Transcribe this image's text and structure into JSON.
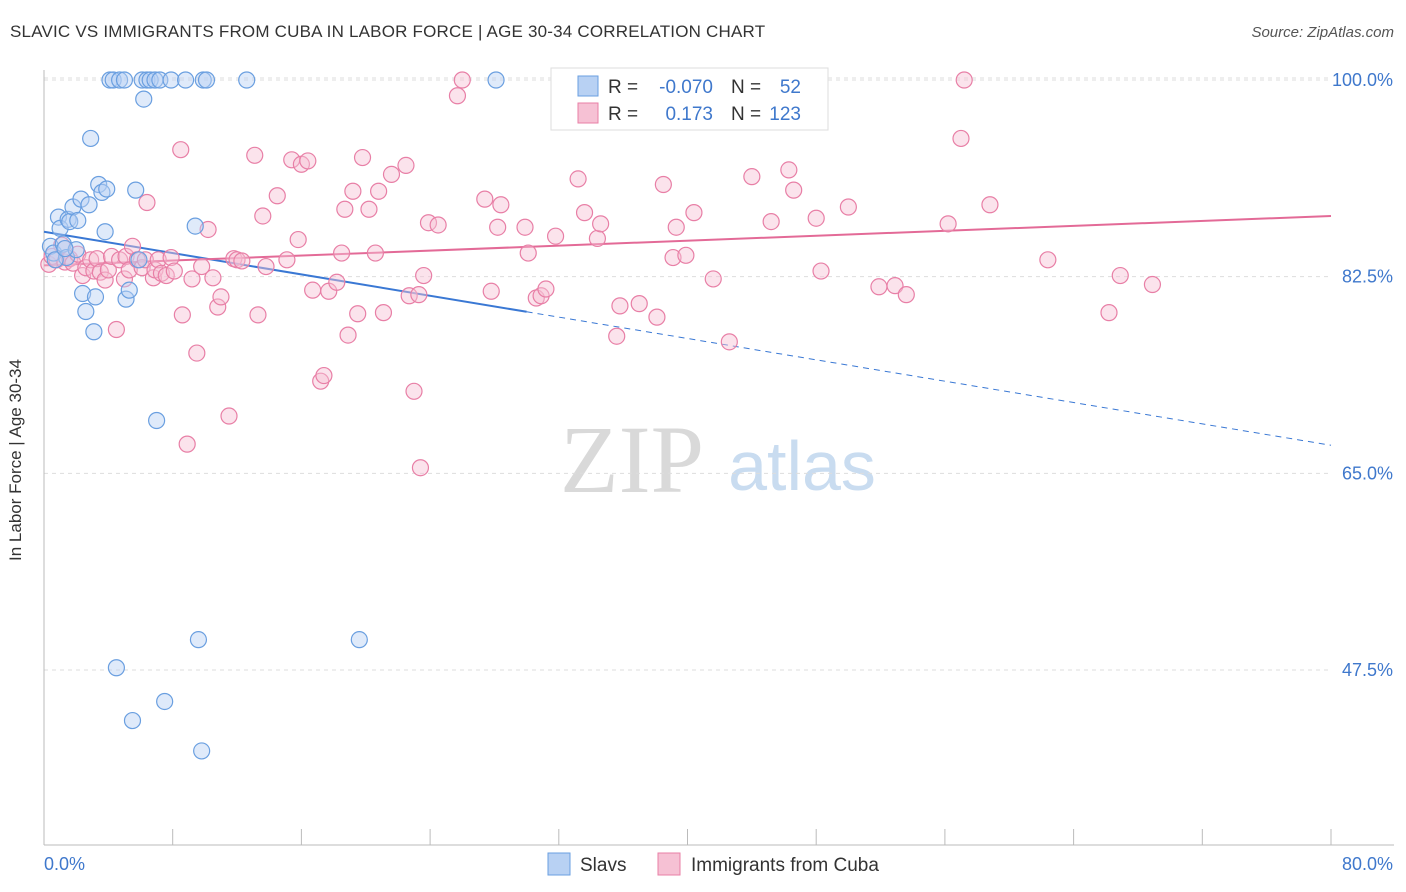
{
  "title": "SLAVIC VS IMMIGRANTS FROM CUBA IN LABOR FORCE | AGE 30-34 CORRELATION CHART",
  "source": "Source: ZipAtlas.com",
  "watermark": {
    "zip": "ZIP",
    "atlas": "atlas"
  },
  "colors": {
    "blue": "#6a9fe0",
    "blue_fill": "#b8d1f3",
    "blue_line": "#3a78d4",
    "pink": "#e87fa6",
    "pink_fill": "#f6c1d4",
    "pink_line": "#e36a97",
    "tick_text": "#3f78cc",
    "grid": "#dddddd"
  },
  "legend_box": {
    "rows": [
      {
        "r_label": "R =",
        "r_value": "-0.070",
        "n_label": "N =",
        "n_value": "52",
        "series": "blue"
      },
      {
        "r_label": "R =",
        "r_value": "0.173",
        "n_label": "N =",
        "n_value": "123",
        "series": "pink"
      }
    ]
  },
  "chart_data": {
    "type": "scatter",
    "title": "SLAVIC VS IMMIGRANTS FROM CUBA IN LABOR FORCE | AGE 30-34 CORRELATION CHART",
    "xlabel": "",
    "ylabel": "In Labor Force | Age 30-34",
    "xlim": [
      0,
      80
    ],
    "ylim": [
      32,
      102
    ],
    "x_tick_labels": [
      "0.0%",
      "80.0%"
    ],
    "y_ticks": [
      100.0,
      82.5,
      65.0,
      47.5
    ],
    "y_tick_labels": [
      "100.0%",
      "82.5%",
      "65.0%",
      "47.5%"
    ],
    "grid": true,
    "legend_position": "bottom-center",
    "series": [
      {
        "name": "Slavs",
        "color": "blue",
        "r": -0.07,
        "n": 52,
        "trend": {
          "x0": 0,
          "y0": 86.5,
          "x_solid_end": 30,
          "x1": 80,
          "y1": 67.5
        },
        "points": [
          [
            0.4,
            85.2
          ],
          [
            0.6,
            84.6
          ],
          [
            0.9,
            87.8
          ],
          [
            1.0,
            86.8
          ],
          [
            1.2,
            85.4
          ],
          [
            1.4,
            84.2
          ],
          [
            1.5,
            87.6
          ],
          [
            1.6,
            87.4
          ],
          [
            1.8,
            88.7
          ],
          [
            2.0,
            84.9
          ],
          [
            2.1,
            87.5
          ],
          [
            2.3,
            89.4
          ],
          [
            2.4,
            81.0
          ],
          [
            2.6,
            79.4
          ],
          [
            2.8,
            88.9
          ],
          [
            2.9,
            94.8
          ],
          [
            3.1,
            77.6
          ],
          [
            3.2,
            80.7
          ],
          [
            3.4,
            90.7
          ],
          [
            3.6,
            90.0
          ],
          [
            3.8,
            86.5
          ],
          [
            3.9,
            90.3
          ],
          [
            4.1,
            100.0
          ],
          [
            4.3,
            100.0
          ],
          [
            4.5,
            47.7
          ],
          [
            4.7,
            100.0
          ],
          [
            5.0,
            100.0
          ],
          [
            5.1,
            80.5
          ],
          [
            5.3,
            81.3
          ],
          [
            5.5,
            43.0
          ],
          [
            5.7,
            90.2
          ],
          [
            5.9,
            84.0
          ],
          [
            6.1,
            100.0
          ],
          [
            6.2,
            98.3
          ],
          [
            6.4,
            100.0
          ],
          [
            6.6,
            100.0
          ],
          [
            6.9,
            100.0
          ],
          [
            7.0,
            69.7
          ],
          [
            7.2,
            100.0
          ],
          [
            7.5,
            44.7
          ],
          [
            7.9,
            100.0
          ],
          [
            8.8,
            100.0
          ],
          [
            9.4,
            87.0
          ],
          [
            9.6,
            50.2
          ],
          [
            9.8,
            40.3
          ],
          [
            9.9,
            100.0
          ],
          [
            10.1,
            100.0
          ],
          [
            12.6,
            100.0
          ],
          [
            19.6,
            50.2
          ],
          [
            28.1,
            100.0
          ],
          [
            0.7,
            84.0
          ],
          [
            1.3,
            85.0
          ]
        ]
      },
      {
        "name": "Immigrants from Cuba",
        "color": "pink",
        "r": 0.173,
        "n": 123,
        "trend": {
          "x0": 0,
          "y0": 83.5,
          "x1": 80,
          "y1": 87.9
        },
        "points": [
          [
            0.3,
            83.6
          ],
          [
            0.5,
            84.3
          ],
          [
            0.8,
            84.0
          ],
          [
            1.1,
            85.3
          ],
          [
            1.3,
            83.8
          ],
          [
            1.6,
            84.1
          ],
          [
            1.8,
            83.7
          ],
          [
            2.1,
            84.5
          ],
          [
            2.4,
            82.6
          ],
          [
            2.6,
            83.3
          ],
          [
            2.9,
            84.0
          ],
          [
            3.1,
            83.0
          ],
          [
            3.3,
            84.1
          ],
          [
            3.5,
            82.9
          ],
          [
            3.8,
            82.2
          ],
          [
            4.0,
            83.1
          ],
          [
            4.2,
            84.3
          ],
          [
            4.5,
            77.8
          ],
          [
            4.7,
            84.0
          ],
          [
            5.0,
            82.3
          ],
          [
            5.1,
            84.3
          ],
          [
            5.3,
            83.1
          ],
          [
            5.5,
            85.2
          ],
          [
            5.8,
            84.0
          ],
          [
            6.1,
            83.3
          ],
          [
            6.3,
            84.0
          ],
          [
            6.4,
            89.1
          ],
          [
            6.8,
            82.4
          ],
          [
            6.9,
            83.1
          ],
          [
            7.1,
            84.0
          ],
          [
            7.3,
            82.8
          ],
          [
            7.6,
            82.6
          ],
          [
            7.9,
            84.2
          ],
          [
            8.1,
            83.0
          ],
          [
            8.5,
            93.8
          ],
          [
            8.6,
            79.1
          ],
          [
            8.9,
            67.6
          ],
          [
            9.2,
            82.3
          ],
          [
            9.5,
            75.7
          ],
          [
            9.8,
            83.4
          ],
          [
            10.2,
            86.7
          ],
          [
            10.5,
            82.4
          ],
          [
            10.8,
            79.8
          ],
          [
            11.0,
            80.7
          ],
          [
            11.5,
            70.1
          ],
          [
            11.8,
            84.1
          ],
          [
            12.0,
            84.0
          ],
          [
            12.3,
            83.9
          ],
          [
            13.1,
            93.3
          ],
          [
            13.3,
            79.1
          ],
          [
            13.6,
            87.9
          ],
          [
            13.8,
            83.4
          ],
          [
            14.5,
            89.7
          ],
          [
            15.1,
            84.0
          ],
          [
            15.4,
            92.9
          ],
          [
            15.8,
            85.8
          ],
          [
            16.0,
            92.5
          ],
          [
            16.4,
            92.8
          ],
          [
            16.7,
            81.3
          ],
          [
            17.2,
            73.2
          ],
          [
            17.4,
            73.7
          ],
          [
            17.7,
            81.2
          ],
          [
            18.2,
            82.0
          ],
          [
            18.5,
            84.6
          ],
          [
            18.7,
            88.5
          ],
          [
            18.9,
            77.3
          ],
          [
            19.2,
            90.1
          ],
          [
            19.5,
            79.2
          ],
          [
            19.8,
            93.1
          ],
          [
            20.2,
            88.5
          ],
          [
            20.6,
            84.6
          ],
          [
            20.8,
            90.1
          ],
          [
            21.1,
            79.3
          ],
          [
            21.6,
            91.6
          ],
          [
            22.5,
            92.4
          ],
          [
            22.7,
            80.8
          ],
          [
            23.0,
            72.3
          ],
          [
            23.3,
            80.9
          ],
          [
            23.4,
            65.5
          ],
          [
            23.6,
            82.6
          ],
          [
            23.9,
            87.3
          ],
          [
            24.5,
            87.1
          ],
          [
            25.7,
            98.6
          ],
          [
            26.0,
            100.0
          ],
          [
            27.4,
            89.4
          ],
          [
            27.8,
            81.2
          ],
          [
            28.2,
            86.9
          ],
          [
            28.4,
            88.9
          ],
          [
            29.9,
            86.9
          ],
          [
            30.1,
            84.6
          ],
          [
            30.6,
            80.6
          ],
          [
            30.9,
            80.8
          ],
          [
            31.2,
            81.4
          ],
          [
            31.8,
            86.1
          ],
          [
            33.2,
            91.2
          ],
          [
            33.6,
            88.2
          ],
          [
            34.4,
            85.9
          ],
          [
            34.6,
            87.2
          ],
          [
            35.6,
            77.2
          ],
          [
            35.8,
            79.9
          ],
          [
            37.0,
            80.1
          ],
          [
            38.1,
            78.9
          ],
          [
            38.5,
            90.7
          ],
          [
            39.1,
            84.2
          ],
          [
            39.3,
            86.9
          ],
          [
            39.9,
            84.4
          ],
          [
            40.4,
            88.2
          ],
          [
            41.6,
            82.3
          ],
          [
            42.6,
            76.7
          ],
          [
            44.0,
            91.4
          ],
          [
            45.2,
            87.4
          ],
          [
            46.3,
            92.0
          ],
          [
            46.6,
            90.2
          ],
          [
            48.0,
            87.7
          ],
          [
            48.3,
            83.0
          ],
          [
            50.0,
            88.7
          ],
          [
            51.9,
            81.6
          ],
          [
            52.9,
            81.7
          ],
          [
            53.6,
            80.9
          ],
          [
            56.2,
            87.2
          ],
          [
            57.0,
            94.8
          ],
          [
            57.2,
            100.0
          ],
          [
            58.8,
            88.9
          ],
          [
            62.4,
            84.0
          ],
          [
            66.2,
            79.3
          ],
          [
            66.9,
            82.6
          ],
          [
            68.9,
            81.8
          ]
        ]
      }
    ]
  }
}
